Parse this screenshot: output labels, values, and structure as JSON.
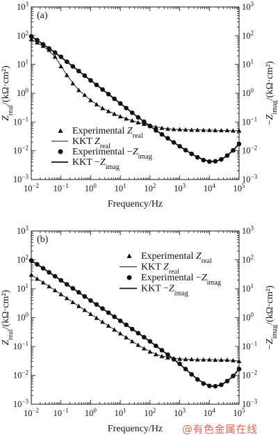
{
  "chart_data": [
    {
      "type": "scatter",
      "panel_label": "(a)",
      "xlabel": "Frequency/Hz",
      "ylabel_left": "Z_real/(kΩ·cm²)",
      "ylabel_right": "−Z_imag/(kΩ·cm²)",
      "x_scale": "log",
      "y_scale": "log",
      "xlim": [
        0.01,
        100000
      ],
      "ylim": [
        0.001,
        1000
      ],
      "x_tick_labels": [
        "10^-2",
        "10^-1",
        "10^0",
        "10^1",
        "10^2",
        "10^3",
        "10^4",
        "10^5"
      ],
      "y_tick_labels": [
        "10^-3",
        "10^-2",
        "10^-1",
        "10^0",
        "10^1",
        "10^2",
        "10^3"
      ],
      "legend_position": "lower-left",
      "legend": [
        {
          "label": "Experimental Z_real",
          "marker": "triangle"
        },
        {
          "label": "KKT Z_real",
          "marker": "thin-line"
        },
        {
          "label": "Experimental −Z_imag",
          "marker": "circle"
        },
        {
          "label": "KKT −Z_imag",
          "marker": "thick-line"
        }
      ],
      "series": [
        {
          "name": "Experimental Z_real",
          "marker": "triangle",
          "x": [
            0.01,
            0.0158,
            0.0251,
            0.0398,
            0.0631,
            0.1,
            0.158,
            0.251,
            0.398,
            0.631,
            1,
            1.58,
            2.51,
            3.98,
            6.31,
            10,
            15.8,
            25.1,
            39.8,
            63.1,
            100,
            158,
            251,
            398,
            631,
            1000,
            1580,
            2510,
            3980,
            6310,
            10000,
            15800,
            25100,
            39800,
            63100,
            100000
          ],
          "y": [
            75,
            58,
            44,
            32,
            18.5,
            8.6,
            4.25,
            2.2,
            1.27,
            0.87,
            0.57,
            0.41,
            0.3,
            0.237,
            0.19,
            0.155,
            0.13,
            0.112,
            0.096,
            0.085,
            0.075,
            0.066,
            0.062,
            0.058,
            0.056,
            0.055,
            0.054,
            0.053,
            0.053,
            0.052,
            0.052,
            0.051,
            0.051,
            0.051,
            0.05,
            0.05
          ]
        },
        {
          "name": "Experimental −Z_imag",
          "marker": "circle",
          "x": [
            0.01,
            0.0158,
            0.0251,
            0.0398,
            0.0631,
            0.1,
            0.158,
            0.251,
            0.398,
            0.631,
            1,
            1.58,
            2.51,
            3.98,
            6.31,
            10,
            15.8,
            25.1,
            39.8,
            63.1,
            100,
            158,
            251,
            398,
            631,
            1000,
            1580,
            2510,
            3980,
            6310,
            10000,
            15800,
            25100,
            39800,
            63100,
            100000
          ],
          "y": [
            95,
            70,
            50,
            36,
            26,
            18.5,
            12.5,
            8.6,
            5.9,
            4.1,
            2.8,
            1.95,
            1.35,
            0.93,
            0.64,
            0.44,
            0.305,
            0.21,
            0.145,
            0.102,
            0.072,
            0.051,
            0.037,
            0.027,
            0.0195,
            0.0143,
            0.0105,
            0.0078,
            0.0059,
            0.0047,
            0.0042,
            0.0043,
            0.005,
            0.0068,
            0.0103,
            0.0172
          ]
        },
        {
          "name": "KKT Z_real",
          "style": "thin-line",
          "x": [
            0.01,
            0.0251,
            0.0631,
            0.158,
            0.398,
            1,
            2.51,
            6.31,
            15.8,
            39.8,
            100,
            251,
            631,
            1580,
            3980,
            10000,
            25100,
            63100,
            100000
          ],
          "y": [
            75,
            44,
            18.5,
            4.25,
            1.27,
            0.57,
            0.3,
            0.19,
            0.13,
            0.096,
            0.075,
            0.062,
            0.056,
            0.054,
            0.053,
            0.052,
            0.051,
            0.05,
            0.05
          ]
        },
        {
          "name": "KKT −Z_imag",
          "style": "thick-line",
          "x": [
            0.01,
            0.0251,
            0.0631,
            0.158,
            0.398,
            1,
            2.51,
            6.31,
            15.8,
            39.8,
            100,
            251,
            631,
            1580,
            3980,
            10000,
            15800,
            25100,
            39800,
            63100,
            100000
          ],
          "y": [
            95,
            50,
            26,
            12.5,
            5.9,
            2.8,
            1.35,
            0.64,
            0.305,
            0.145,
            0.072,
            0.037,
            0.0195,
            0.0105,
            0.0059,
            0.0042,
            0.0043,
            0.005,
            0.0068,
            0.0103,
            0.0172
          ]
        }
      ]
    },
    {
      "type": "scatter",
      "panel_label": "(b)",
      "xlabel": "Frequency/Hz",
      "ylabel_left": "Z_real/(kΩ·cm²)",
      "ylabel_right": "−Z_imag/(kΩ·cm²)",
      "x_scale": "log",
      "y_scale": "log",
      "xlim": [
        0.01,
        100000
      ],
      "ylim": [
        0.001,
        1000
      ],
      "x_tick_labels": [
        "10^-2",
        "10^-1",
        "10^0",
        "10^1",
        "10^2",
        "10^3",
        "10^4",
        "10^5"
      ],
      "y_tick_labels": [
        "10^-3",
        "10^-2",
        "10^-1",
        "10^0",
        "10^1",
        "10^2",
        "10^3"
      ],
      "legend_position": "upper-right",
      "legend": [
        {
          "label": "Experimental Z_real",
          "marker": "triangle"
        },
        {
          "label": "KKT Z_real",
          "marker": "thin-line"
        },
        {
          "label": "Experimental −Z_imag",
          "marker": "circle"
        },
        {
          "label": "KKT −Z_imag",
          "marker": "thick-line"
        }
      ],
      "series": [
        {
          "name": "Experimental Z_real",
          "marker": "triangle",
          "x": [
            0.01,
            0.0158,
            0.0251,
            0.0398,
            0.0631,
            0.1,
            0.158,
            0.251,
            0.398,
            0.631,
            1,
            1.58,
            2.51,
            3.98,
            6.31,
            10,
            15.8,
            25.1,
            39.8,
            63.1,
            100,
            158,
            251,
            398,
            631,
            1000,
            1580,
            2510,
            3980,
            6310,
            10000,
            15800,
            25100,
            39800,
            63100,
            100000
          ],
          "y": [
            30,
            22,
            16.5,
            12,
            8.8,
            6.4,
            4.7,
            3.4,
            2.5,
            1.83,
            1.33,
            0.97,
            0.71,
            0.52,
            0.38,
            0.28,
            0.205,
            0.15,
            0.112,
            0.085,
            0.066,
            0.053,
            0.046,
            0.041,
            0.039,
            0.037,
            0.036,
            0.036,
            0.035,
            0.035,
            0.035,
            0.034,
            0.034,
            0.034,
            0.033,
            0.031
          ]
        },
        {
          "name": "Experimental −Z_imag",
          "marker": "circle",
          "x": [
            0.01,
            0.0158,
            0.0251,
            0.0398,
            0.0631,
            0.1,
            0.158,
            0.251,
            0.398,
            0.631,
            1,
            1.58,
            2.51,
            3.98,
            6.31,
            10,
            15.8,
            25.1,
            39.8,
            63.1,
            100,
            158,
            251,
            398,
            631,
            1000,
            1580,
            2510,
            3980,
            6310,
            10000,
            15800,
            25100,
            39800,
            63100,
            100000
          ],
          "y": [
            95,
            70,
            51,
            37,
            27,
            19.6,
            14.2,
            10.3,
            7.5,
            5.4,
            3.9,
            2.85,
            2.05,
            1.48,
            1.07,
            0.77,
            0.56,
            0.4,
            0.29,
            0.21,
            0.15,
            0.105,
            0.074,
            0.052,
            0.036,
            0.025,
            0.0165,
            0.0108,
            0.0072,
            0.0052,
            0.0043,
            0.0042,
            0.0047,
            0.0063,
            0.0095,
            0.0165
          ]
        },
        {
          "name": "KKT Z_real",
          "style": "thin-line",
          "x": [
            0.01,
            0.0251,
            0.0631,
            0.158,
            0.398,
            1,
            2.51,
            6.31,
            15.8,
            39.8,
            100,
            251,
            631,
            1580,
            3980,
            10000,
            25100,
            63100,
            100000
          ],
          "y": [
            30,
            16.5,
            8.8,
            4.7,
            2.5,
            1.33,
            0.71,
            0.38,
            0.205,
            0.112,
            0.066,
            0.046,
            0.039,
            0.036,
            0.035,
            0.035,
            0.034,
            0.033,
            0.031
          ]
        },
        {
          "name": "KKT −Z_imag",
          "style": "thick-line",
          "x": [
            0.01,
            0.0251,
            0.0631,
            0.158,
            0.398,
            1,
            2.51,
            6.31,
            15.8,
            39.8,
            100,
            251,
            631,
            1580,
            3980,
            10000,
            15800,
            25100,
            39800,
            63100,
            100000
          ],
          "y": [
            95,
            51,
            27,
            14.2,
            7.5,
            3.9,
            2.05,
            1.07,
            0.56,
            0.29,
            0.15,
            0.074,
            0.036,
            0.0165,
            0.0072,
            0.0043,
            0.0042,
            0.0047,
            0.0063,
            0.0095,
            0.0165
          ]
        }
      ]
    }
  ],
  "watermark": "@有色金属在线"
}
